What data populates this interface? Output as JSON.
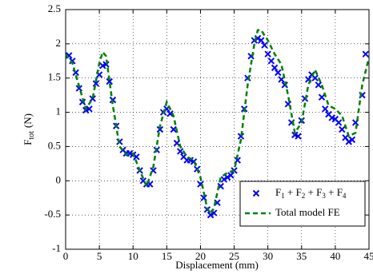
{
  "chart_data": {
    "type": "scatter",
    "xlabel": "Displacement (mm)",
    "ylabel_parts": [
      "F",
      "tot",
      "(N)"
    ],
    "xlim": [
      0,
      45
    ],
    "xticks": [
      0,
      5,
      10,
      15,
      20,
      25,
      30,
      35,
      40,
      45
    ],
    "ylim": [
      -1,
      2.5
    ],
    "yticks": [
      -1,
      -0.5,
      0,
      0.5,
      1,
      1.5,
      2,
      2.5
    ],
    "grid": true,
    "legend": "lower right",
    "series": [
      {
        "name": "F1 + F2 + F3 + F4",
        "type": "scatter",
        "marker": "x",
        "color": "#0000ff",
        "x": [
          0.5,
          1,
          1.5,
          2,
          2.5,
          3,
          3.5,
          4,
          4.5,
          5,
          5.5,
          6,
          6.5,
          7,
          7.5,
          8,
          8.5,
          9,
          9.5,
          10,
          10.5,
          11,
          11.5,
          12,
          12.5,
          13,
          13.5,
          14,
          14.5,
          15,
          15.5,
          16,
          16.5,
          17,
          17.5,
          18,
          18.5,
          19,
          19.5,
          20,
          20.5,
          21,
          21.5,
          22,
          22.5,
          23,
          23.5,
          24,
          24.5,
          25,
          25.5,
          26,
          26.5,
          27,
          27.5,
          28,
          28.5,
          29,
          29.5,
          30,
          30.5,
          31,
          31.5,
          32,
          32.5,
          33,
          33.5,
          34,
          34.5,
          35,
          35.5,
          36,
          36.5,
          37,
          37.5,
          38,
          38.5,
          39,
          39.5,
          40,
          40.5,
          41,
          41.5,
          42,
          42.5,
          43,
          44,
          44.5
        ],
        "values": [
          1.83,
          1.75,
          1.58,
          1.35,
          1.15,
          1.03,
          1.05,
          1.2,
          1.42,
          1.55,
          1.68,
          1.7,
          1.45,
          1.18,
          0.8,
          0.57,
          0.45,
          0.4,
          0.4,
          0.38,
          0.35,
          0.15,
          0,
          -0.05,
          -0.05,
          0.15,
          0.45,
          0.75,
          1,
          1.05,
          0.98,
          0.75,
          0.55,
          0.43,
          0.35,
          0.3,
          0.3,
          0.28,
          0.17,
          -0.05,
          -0.25,
          -0.42,
          -0.5,
          -0.47,
          -0.32,
          -0.08,
          0.02,
          0.05,
          0.08,
          0.15,
          0.3,
          0.65,
          1.05,
          1.5,
          1.82,
          2.05,
          2.08,
          2.05,
          1.98,
          1.85,
          1.75,
          1.65,
          1.58,
          1.48,
          1.4,
          1.12,
          0.85,
          0.67,
          0.65,
          0.88,
          1.2,
          1.48,
          1.55,
          1.5,
          1.4,
          1.22,
          1.05,
          0.97,
          0.92,
          0.9,
          0.85,
          0.75,
          0.63,
          0.57,
          0.6,
          0.85,
          1.25,
          1.85
        ]
      },
      {
        "name": "Total model FE",
        "type": "line",
        "dash": true,
        "color": "#008000",
        "x": [
          0,
          1,
          2,
          3,
          4,
          5,
          5.5,
          6,
          7,
          8,
          9,
          10,
          11,
          12,
          13,
          14,
          15,
          16,
          17,
          18,
          19,
          20,
          21,
          21.5,
          22,
          23,
          24,
          25,
          26,
          27,
          28,
          28.5,
          29,
          30,
          31,
          32,
          33,
          34,
          35,
          36,
          37,
          38,
          39,
          40,
          41,
          42,
          43,
          44,
          45
        ],
        "values": [
          1.85,
          1.72,
          1.38,
          1.05,
          1.2,
          1.72,
          1.88,
          1.82,
          1.1,
          0.5,
          0.38,
          0.4,
          0.15,
          -0.08,
          0.2,
          0.8,
          1.15,
          0.95,
          0.5,
          0.35,
          0.3,
          0.05,
          -0.4,
          -0.48,
          -0.4,
          0.05,
          0.12,
          0.15,
          0.6,
          1.4,
          2,
          2.2,
          2.2,
          2.05,
          1.85,
          1.7,
          1.25,
          0.7,
          0.85,
          1.4,
          1.62,
          1.4,
          1.1,
          1.05,
          0.95,
          0.65,
          0.7,
          1.4,
          1.8
        ]
      }
    ]
  }
}
